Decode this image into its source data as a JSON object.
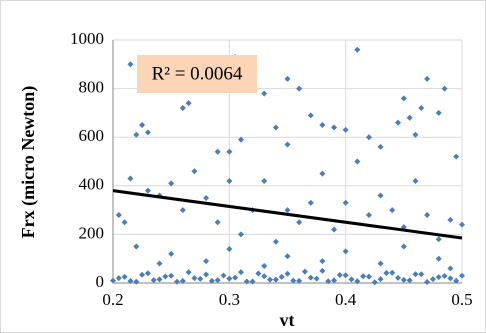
{
  "chart_data": {
    "type": "scatter",
    "xlabel": "vt",
    "ylabel": "Frx (micro Newton)",
    "xlim": [
      0.2,
      0.5
    ],
    "xticks": [
      0.2,
      0.3,
      0.4,
      0.5
    ],
    "ylim": [
      0,
      1000
    ],
    "yticks": [
      0,
      200,
      400,
      600,
      800,
      1000
    ],
    "grid": true,
    "annotation": "R² = 0.0064",
    "trendline": {
      "x": [
        0.2,
        0.5
      ],
      "y": [
        380,
        185
      ],
      "color": "#000000"
    },
    "series": [
      {
        "color": "#4a7ebb",
        "x": [
          0.215,
          0.225,
          0.22,
          0.23,
          0.26,
          0.265,
          0.27,
          0.28,
          0.29,
          0.3,
          0.305,
          0.31,
          0.315,
          0.33,
          0.34,
          0.35,
          0.36,
          0.37,
          0.38,
          0.39,
          0.4,
          0.41,
          0.42,
          0.43,
          0.445,
          0.455,
          0.465,
          0.47,
          0.48,
          0.485,
          0.495,
          0.45,
          0.46,
          0.35,
          0.205,
          0.21,
          0.215,
          0.23,
          0.24,
          0.25,
          0.26,
          0.27,
          0.28,
          0.29,
          0.3,
          0.31,
          0.32,
          0.33,
          0.34,
          0.35,
          0.36,
          0.37,
          0.38,
          0.39,
          0.4,
          0.41,
          0.42,
          0.43,
          0.44,
          0.45,
          0.46,
          0.47,
          0.48,
          0.49,
          0.5,
          0.22,
          0.25,
          0.3,
          0.35,
          0.4,
          0.45,
          0.24,
          0.28,
          0.33,
          0.38,
          0.43,
          0.48,
          0.49,
          0.2,
          0.21,
          0.22,
          0.23,
          0.24,
          0.25,
          0.26,
          0.27,
          0.28,
          0.29,
          0.3,
          0.31,
          0.32,
          0.33,
          0.34,
          0.35,
          0.36,
          0.37,
          0.38,
          0.39,
          0.4,
          0.41,
          0.42,
          0.43,
          0.44,
          0.45,
          0.46,
          0.47,
          0.48,
          0.49,
          0.5,
          0.205,
          0.215,
          0.225,
          0.235,
          0.245,
          0.255,
          0.265,
          0.275,
          0.285,
          0.295,
          0.305,
          0.315,
          0.325,
          0.335,
          0.345,
          0.355,
          0.365,
          0.375,
          0.385,
          0.395,
          0.405,
          0.415,
          0.425,
          0.435,
          0.445,
          0.455,
          0.465,
          0.475,
          0.485,
          0.495
        ],
        "y": [
          900,
          650,
          610,
          620,
          720,
          740,
          920,
          830,
          540,
          540,
          930,
          590,
          860,
          780,
          640,
          570,
          800,
          690,
          650,
          640,
          630,
          960,
          600,
          560,
          660,
          680,
          720,
          840,
          700,
          800,
          520,
          760,
          610,
          840,
          280,
          250,
          430,
          380,
          360,
          410,
          300,
          460,
          350,
          250,
          420,
          200,
          300,
          420,
          170,
          300,
          250,
          330,
          450,
          220,
          330,
          500,
          280,
          360,
          300,
          230,
          420,
          280,
          180,
          260,
          240,
          150,
          120,
          140,
          110,
          130,
          150,
          80,
          90,
          70,
          90,
          80,
          100,
          60,
          10,
          25,
          5,
          40,
          15,
          30,
          8,
          20,
          35,
          12,
          18,
          45,
          6,
          28,
          14,
          38,
          9,
          22,
          50,
          11,
          32,
          7,
          26,
          16,
          42,
          13,
          36,
          4,
          24,
          19,
          30,
          20,
          8,
          34,
          12,
          27,
          5,
          44,
          17,
          9,
          31,
          22,
          6,
          39,
          14,
          25,
          10,
          47,
          18,
          7,
          33,
          15,
          28,
          3,
          41,
          21,
          11,
          36,
          16,
          29,
          9
        ]
      }
    ]
  }
}
